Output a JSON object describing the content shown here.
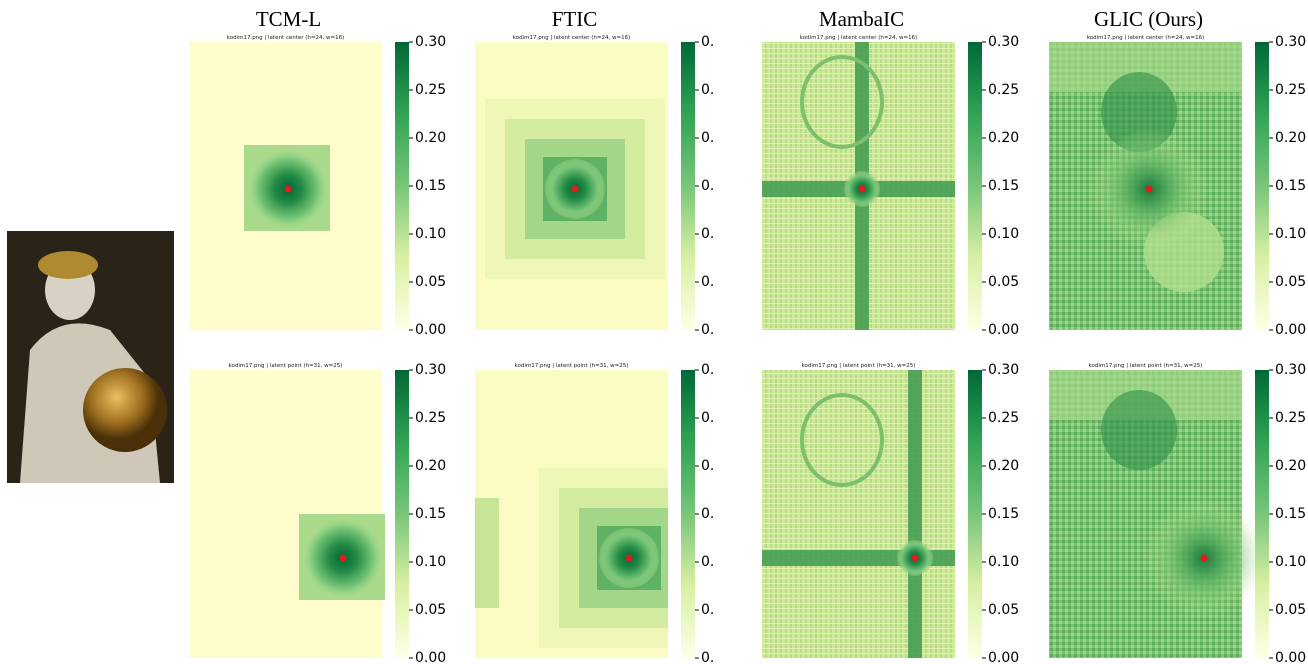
{
  "figure": {
    "columns": [
      {
        "title": "TCM-L",
        "panels": [
          {
            "caption": "kodim17.png | latent center (h=24, w=16)"
          },
          {
            "caption": "kodim17.png | latent point (h=31, w=25)"
          }
        ],
        "colorbar_labels": [
          "0.30",
          "0.25",
          "0.20",
          "0.15",
          "0.10",
          "0.05",
          "0.00"
        ]
      },
      {
        "title": "FTIC",
        "panels": [
          {
            "caption": "kodim17.png | latent center (h=24, w=16)"
          },
          {
            "caption": "kodim17.png | latent point (h=31, w=25)"
          }
        ],
        "colorbar_labels": [
          "0.",
          "0.",
          "0.",
          "0.",
          "0.",
          "0.",
          "0."
        ]
      },
      {
        "title": "MambaIC",
        "panels": [
          {
            "caption": "kodim17.png | latent center (h=24, w=16)"
          },
          {
            "caption": "kodim17.png | latent point (h=31, w=25)"
          }
        ],
        "colorbar_labels": [
          "0.30",
          "0.25",
          "0.20",
          "0.15",
          "0.10",
          "0.05",
          "0.00"
        ]
      },
      {
        "title": "GLIC (Ours)",
        "panels": [
          {
            "caption": "kodim17.png | latent center (h=24, w=16)"
          },
          {
            "caption": "kodim17.png | latent point (h=31, w=25)"
          }
        ],
        "colorbar_labels": [
          "0.30",
          "0.25",
          "0.20",
          "0.15",
          "0.10",
          "0.05",
          "0.00"
        ]
      }
    ]
  }
}
